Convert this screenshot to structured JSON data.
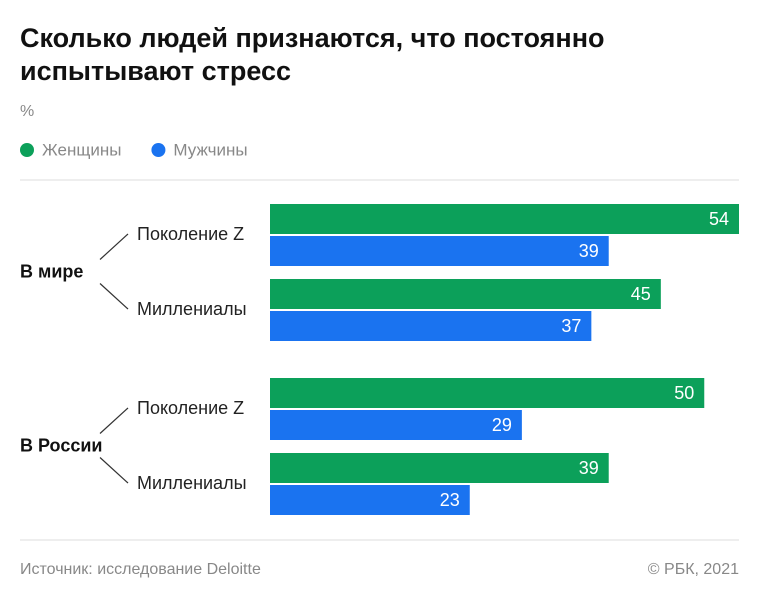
{
  "chart_data": {
    "type": "bar",
    "orientation": "horizontal",
    "title_lines": [
      "Сколько людей признаются, что постоянно",
      "испытывают стресс"
    ],
    "subtitle": "%",
    "groups": [
      "В мире",
      "В России"
    ],
    "categories": [
      "Поколение Z",
      "Миллениалы",
      "Поколение Z",
      "Миллениалы"
    ],
    "series": [
      {
        "name": "Женщины",
        "color": "#0ca05a",
        "values": [
          54,
          45,
          50,
          39
        ]
      },
      {
        "name": "Мужчины",
        "color": "#1a73f0",
        "values": [
          39,
          37,
          29,
          23
        ]
      }
    ],
    "source": "Источник: исследование Deloitte",
    "credit": "© РБК, 2021"
  }
}
